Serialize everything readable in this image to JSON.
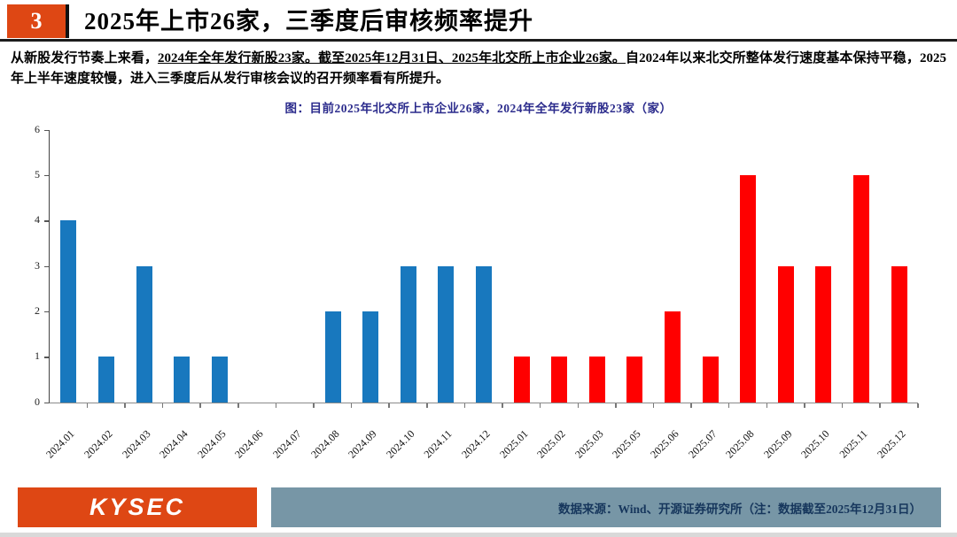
{
  "header": {
    "slide_number": "3",
    "title": "2025年上市26家，三季度后审核频率提升"
  },
  "body": {
    "lead": "从新股发行节奏上来看，",
    "underlined": "2024年全年发行新股23家。截至2025年12月31日、2025年北交所上市企业26家。",
    "rest": "自2024年以来北交所整体发行速度基本保持平稳，2025年上半年速度较慢，进入三季度后从发行审核会议的召开频率看有所提升。"
  },
  "chart_data": {
    "type": "bar",
    "title": "图：目前2025年北交所上市企业26家，2024年全年发行新股23家（家）",
    "categories": [
      "2024.01",
      "2024.02",
      "2024.03",
      "2024.04",
      "2024.05",
      "2024.06",
      "2024.07",
      "2024.08",
      "2024.09",
      "2024.10",
      "2024.11",
      "2024.12",
      "2025.01",
      "2025.02",
      "2025.03",
      "2025.05",
      "2025.06",
      "2025.07",
      "2025.08",
      "2025.09",
      "2025.10",
      "2025.11",
      "2025.12"
    ],
    "values": [
      4,
      1,
      3,
      1,
      1,
      0,
      0,
      2,
      2,
      3,
      3,
      3,
      1,
      1,
      1,
      1,
      2,
      1,
      5,
      3,
      3,
      5,
      3
    ],
    "bar_colors": [
      "#1878be",
      "#1878be",
      "#1878be",
      "#1878be",
      "#1878be",
      "#1878be",
      "#1878be",
      "#1878be",
      "#1878be",
      "#1878be",
      "#1878be",
      "#1878be",
      "#ff0000",
      "#ff0000",
      "#ff0000",
      "#ff0000",
      "#ff0000",
      "#ff0000",
      "#ff0000",
      "#ff0000",
      "#ff0000",
      "#ff0000",
      "#ff0000"
    ],
    "series_note": {
      "blue_2024_total": 23,
      "red_2025_total": 26
    },
    "xlabel": "",
    "ylabel": "",
    "ylim": [
      0,
      6
    ],
    "yticks": [
      0,
      1,
      2,
      3,
      4,
      5,
      6
    ],
    "grid": false,
    "legend": "none",
    "x_label_rotation": -45
  },
  "footer": {
    "logo": "KYSEC",
    "source": "数据来源：Wind、开源证券研究所（注：数据截至2025年12月31日）"
  },
  "colors": {
    "accent_red_orange": "#de4714",
    "bar_blue": "#1878be",
    "bar_red": "#ff0000",
    "chart_title_blue": "#2b2b8c",
    "footer_bar_slate": "#7796a6",
    "footer_text_navy": "#16365c"
  }
}
